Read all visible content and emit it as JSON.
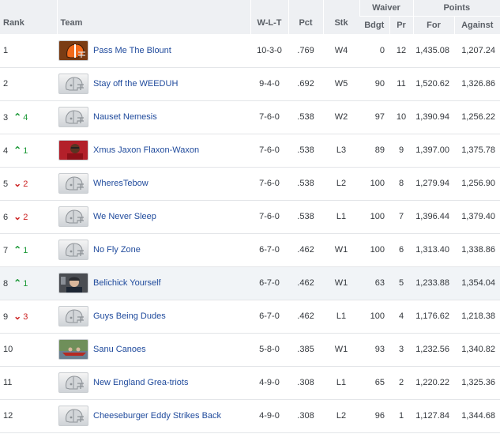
{
  "headers": {
    "rank": "Rank",
    "team": "Team",
    "wlt": "W-L-T",
    "pct": "Pct",
    "stk": "Stk",
    "waiver": "Waiver",
    "bdgt": "Bdgt",
    "pr": "Pr",
    "points": "Points",
    "for": "For",
    "against": "Against"
  },
  "rows": [
    {
      "rank": "1",
      "dir": "",
      "chg": "",
      "team": "Pass Me The Blount",
      "logo": "browns-helmet-icon",
      "wlt": "10-3-0",
      "pct": ".769",
      "stk": "W4",
      "bdgt": "0",
      "pr": "12",
      "for": "1,435.08",
      "against": "1,207.24"
    },
    {
      "rank": "2",
      "dir": "",
      "chg": "",
      "team": "Stay off the WEEDUH",
      "logo": "default-helmet-icon",
      "wlt": "9-4-0",
      "pct": ".692",
      "stk": "W5",
      "bdgt": "90",
      "pr": "11",
      "for": "1,520.62",
      "against": "1,326.86"
    },
    {
      "rank": "3",
      "dir": "up",
      "chg": "4",
      "team": "Nauset Nemesis",
      "logo": "default-helmet-icon",
      "wlt": "7-6-0",
      "pct": ".538",
      "stk": "W2",
      "bdgt": "97",
      "pr": "10",
      "for": "1,390.94",
      "against": "1,256.22"
    },
    {
      "rank": "4",
      "dir": "up",
      "chg": "1",
      "team": "Xmus Jaxon Flaxon-Waxon",
      "logo": "player-photo-icon",
      "wlt": "7-6-0",
      "pct": ".538",
      "stk": "L3",
      "bdgt": "89",
      "pr": "9",
      "for": "1,397.00",
      "against": "1,375.78"
    },
    {
      "rank": "5",
      "dir": "down",
      "chg": "2",
      "team": "WheresTebow",
      "logo": "default-helmet-icon",
      "wlt": "7-6-0",
      "pct": ".538",
      "stk": "L2",
      "bdgt": "100",
      "pr": "8",
      "for": "1,279.94",
      "against": "1,256.90"
    },
    {
      "rank": "6",
      "dir": "down",
      "chg": "2",
      "team": "We Never Sleep",
      "logo": "default-helmet-icon",
      "wlt": "7-6-0",
      "pct": ".538",
      "stk": "L1",
      "bdgt": "100",
      "pr": "7",
      "for": "1,396.44",
      "against": "1,379.40"
    },
    {
      "rank": "7",
      "dir": "up",
      "chg": "1",
      "team": "No Fly Zone",
      "logo": "default-helmet-icon",
      "wlt": "6-7-0",
      "pct": ".462",
      "stk": "W1",
      "bdgt": "100",
      "pr": "6",
      "for": "1,313.40",
      "against": "1,338.86"
    },
    {
      "rank": "8",
      "dir": "up",
      "chg": "1",
      "team": "Belichick Yourself",
      "logo": "coach-photo-icon",
      "wlt": "6-7-0",
      "pct": ".462",
      "stk": "W1",
      "bdgt": "63",
      "pr": "5",
      "for": "1,233.88",
      "against": "1,354.04"
    },
    {
      "rank": "9",
      "dir": "down",
      "chg": "3",
      "team": "Guys Being Dudes",
      "logo": "default-helmet-icon",
      "wlt": "6-7-0",
      "pct": ".462",
      "stk": "L1",
      "bdgt": "100",
      "pr": "4",
      "for": "1,176.62",
      "against": "1,218.38"
    },
    {
      "rank": "10",
      "dir": "",
      "chg": "",
      "team": "Sanu Canoes",
      "logo": "canoe-photo-icon",
      "wlt": "5-8-0",
      "pct": ".385",
      "stk": "W1",
      "bdgt": "93",
      "pr": "3",
      "for": "1,232.56",
      "against": "1,340.82"
    },
    {
      "rank": "11",
      "dir": "",
      "chg": "",
      "team": "New England Grea-triots",
      "logo": "default-helmet-icon",
      "wlt": "4-9-0",
      "pct": ".308",
      "stk": "L1",
      "bdgt": "65",
      "pr": "2",
      "for": "1,220.22",
      "against": "1,325.36"
    },
    {
      "rank": "12",
      "dir": "",
      "chg": "",
      "team": "Cheeseburger Eddy Strikes Back",
      "logo": "default-helmet-icon",
      "wlt": "4-9-0",
      "pct": ".308",
      "stk": "L2",
      "bdgt": "96",
      "pr": "1",
      "for": "1,127.84",
      "against": "1,344.68"
    }
  ],
  "highlighted_row": 7,
  "colors": {
    "header_bg": "#eef0f3",
    "link": "#1f4a9c",
    "up": "#1f9a3a",
    "down": "#cc2222",
    "row_border": "#e3e5e8"
  }
}
